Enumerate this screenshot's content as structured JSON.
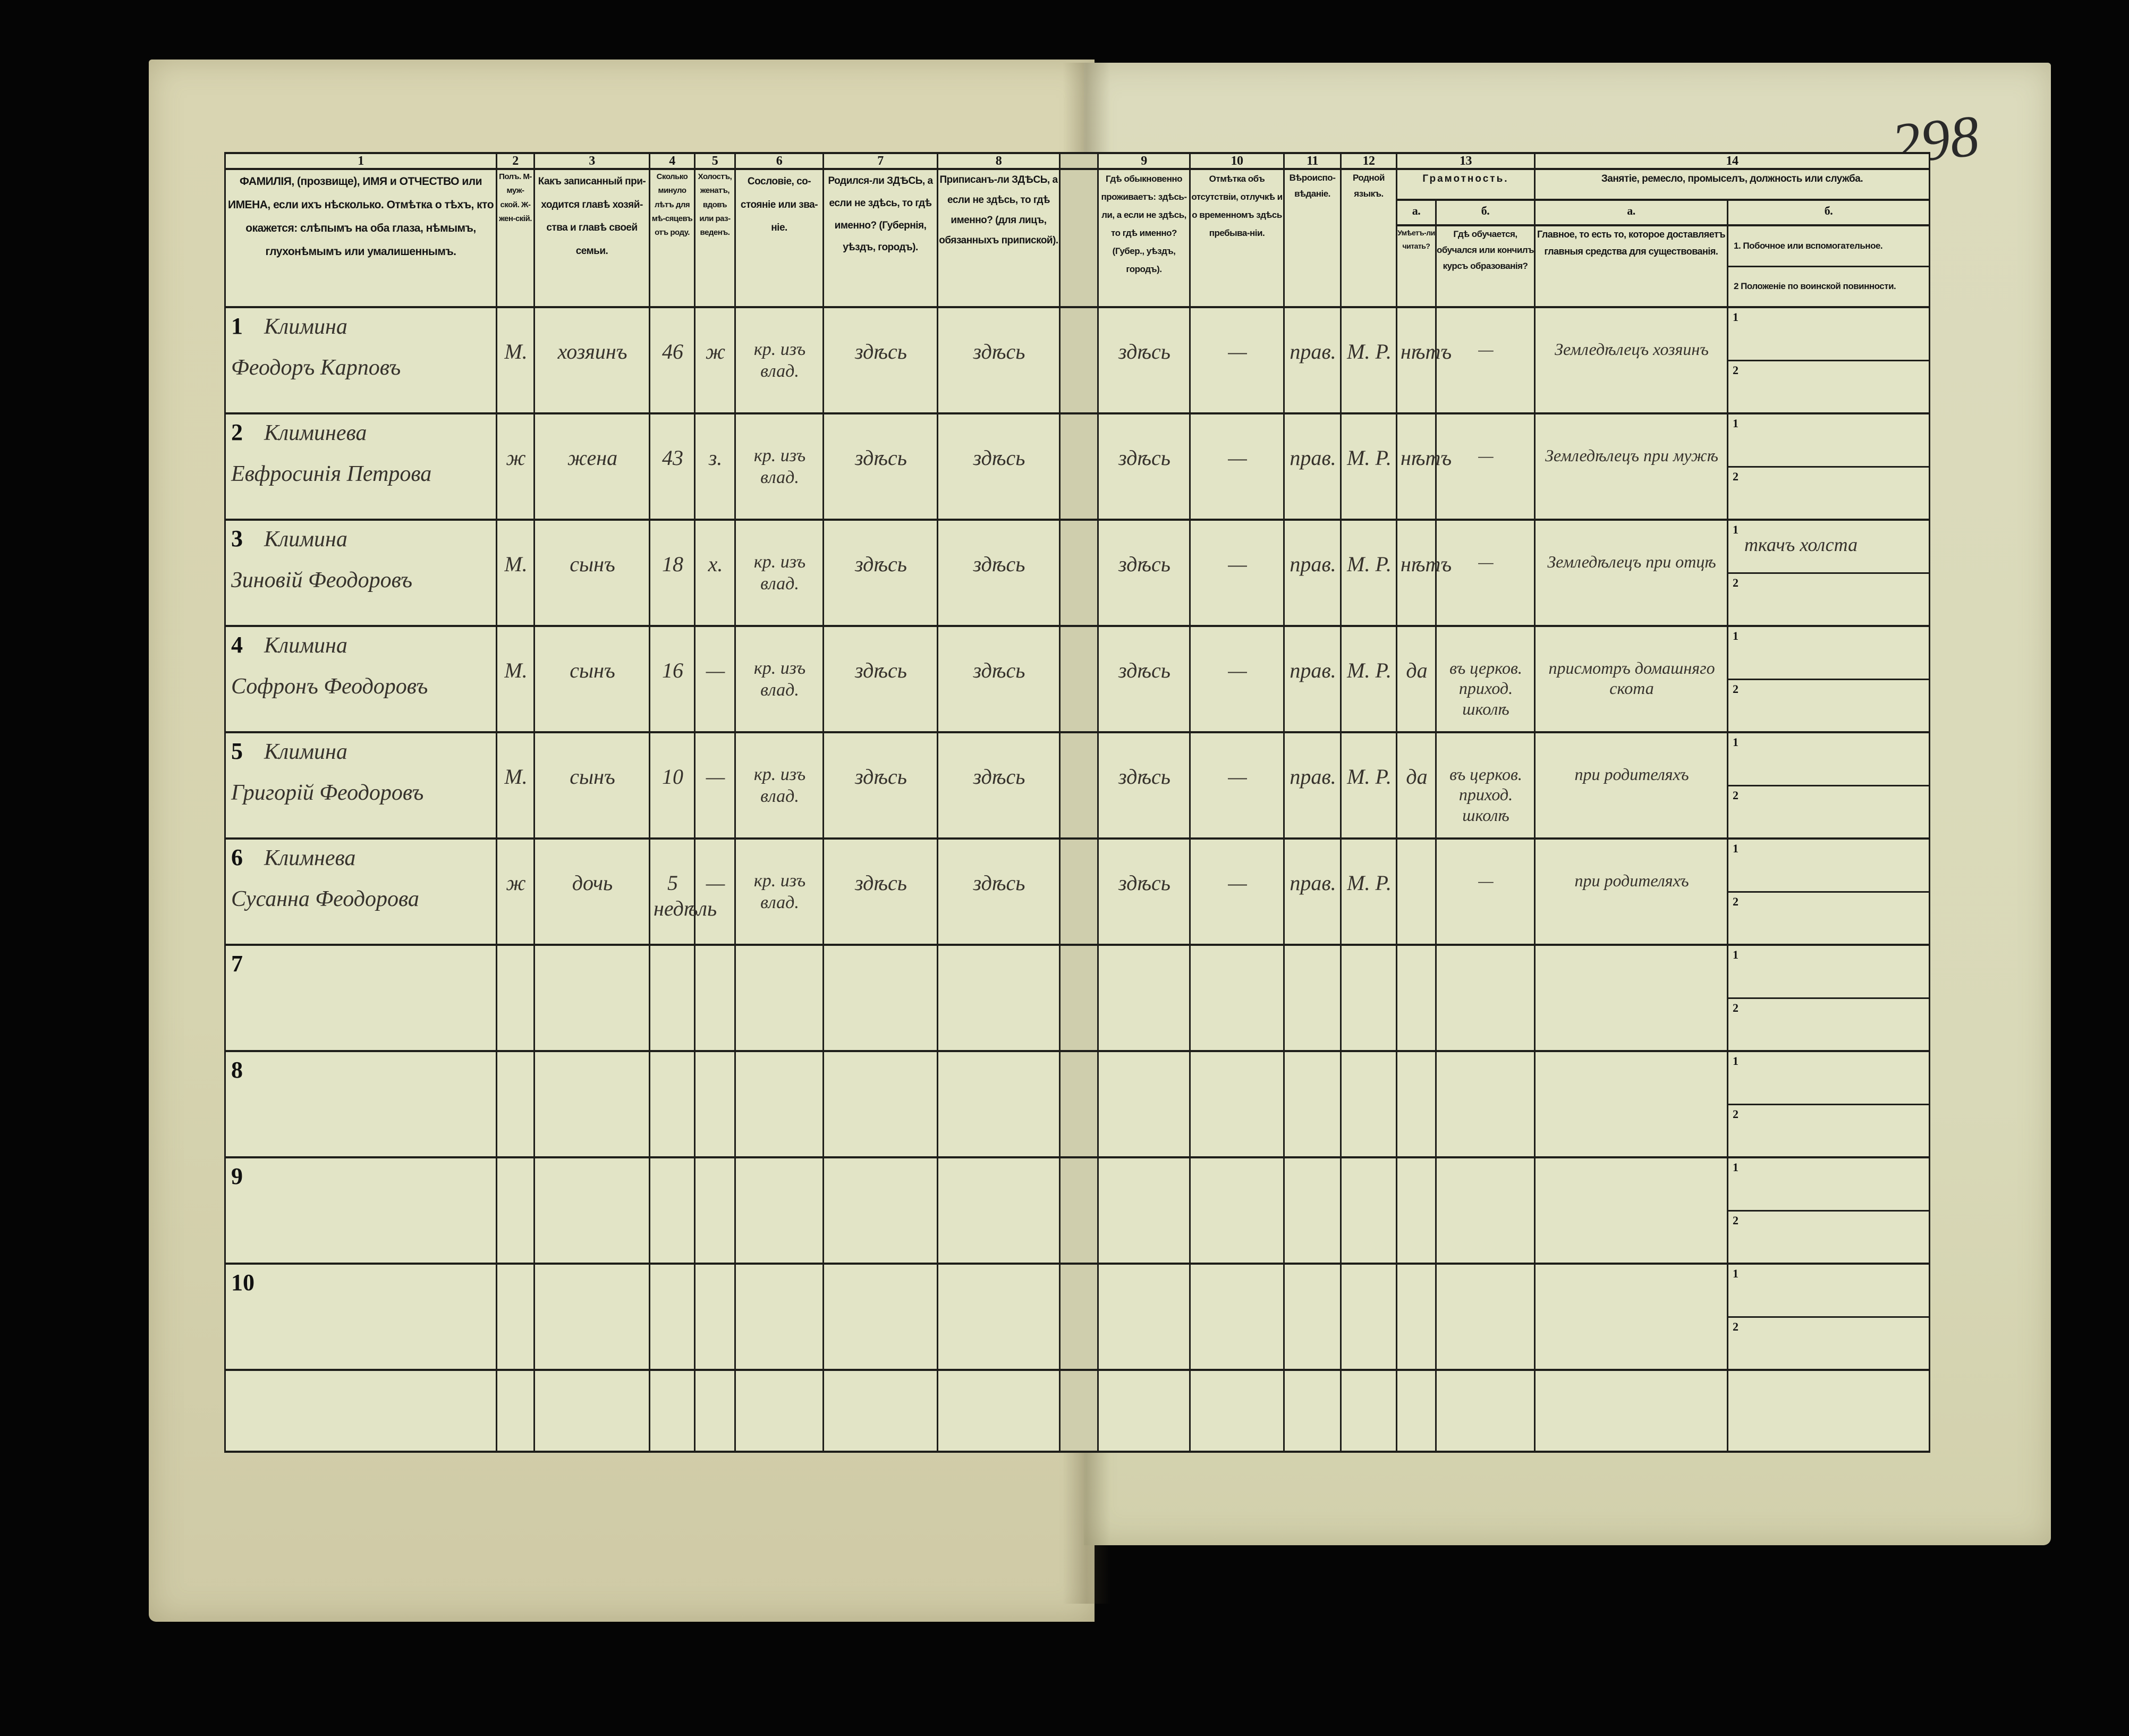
{
  "page_number": "298",
  "header": {
    "column_numbers": [
      "1",
      "2",
      "3",
      "4",
      "5",
      "6",
      "7",
      "8",
      "9",
      "10",
      "11",
      "12",
      "13",
      "14"
    ],
    "col1": "ФАМИЛІЯ, (прозвище), ИМЯ и ОТЧЕСТВО или ИМЕНА, если ихъ нѣсколько. Отмѣтка о тѣхъ, кто окажется: слѣпымъ на оба глаза, нѣмымъ, глухонѣмымъ или умалишеннымъ.",
    "col2": "Полъ. М-муж-ской. Ж-жен-скій.",
    "col3": "Какъ записанный при-ходится главѣ хозяй-ства и главѣ своей семьи.",
    "col4": "Сколько минуло лѣтъ для мѣ-сяцевъ отъ роду.",
    "col5": "Холостъ, женатъ, вдовъ или раз-веденъ.",
    "col6": "Сословіе, со-стояніе или зва-ніе.",
    "col7": "Родился-ли ЗДѢСЬ, а если не здѣсь, то гдѣ именно? (Губернія, уѣздъ, городъ).",
    "col8": "Приписанъ-ли ЗДѢСЬ, а если не здѣсь, то гдѣ именно? (для лицъ, обязанныхъ припиской).",
    "col9": "Гдѣ обыкновенно проживаетъ: здѣсь-ли, а если не здѣсь, то гдѣ именно? (Губер., уѣздъ, городъ).",
    "col10": "Отмѣтка объ отсутствіи, отлучкѣ и о временномъ здѣсь пребыва-ніи.",
    "col11": "Вѣроиспо-вѣданіе.",
    "col12": "Родной языкъ.",
    "col13_title": "Грамотность.",
    "col13a_letter": "а.",
    "col13b_letter": "б.",
    "col13a": "Умѣетъ-ли читать?",
    "col13b": "Гдѣ обучается, обучался или кончилъ курсъ образованія?",
    "col14_title": "Занятіе, ремесло, промыселъ, должность или служба.",
    "col14a_letter": "а.",
    "col14b_letter": "б.",
    "col14a": "Главное, то есть то, которое доставляетъ главныя средства для существованія.",
    "col14b_1": "1. Побочное или вспомогательное.",
    "col14b_2": "2 Положеніе по воинской повинности."
  },
  "sub_labels": [
    "1",
    "2"
  ],
  "rows": [
    {
      "num": "1",
      "surname": "Климина",
      "given": "Феодоръ Карповъ",
      "sex": "М.",
      "relation": "хозяинъ",
      "age": "46",
      "marital": "ж",
      "estate": "кр. изъ влад.",
      "birthplace": "здѣсь",
      "registered": "здѣсь",
      "residence": "здѣсь",
      "absence": "—",
      "religion": "прав.",
      "language": "М. Р.",
      "literate": "нѣтъ",
      "school": "—",
      "occupation_main": "Земледѣлецъ хозяинъ",
      "occupation_secondary": "",
      "military": ""
    },
    {
      "num": "2",
      "surname": "Климинева",
      "given": "Евфросинія Петрова",
      "sex": "ж",
      "relation": "жена",
      "age": "43",
      "marital": "з.",
      "estate": "кр. изъ влад.",
      "birthplace": "здѣсь",
      "registered": "здѣсь",
      "residence": "здѣсь",
      "absence": "—",
      "religion": "прав.",
      "language": "М. Р.",
      "literate": "нѣтъ",
      "school": "—",
      "occupation_main": "Земледѣлецъ при мужѣ",
      "occupation_secondary": "",
      "military": ""
    },
    {
      "num": "3",
      "surname": "Климина",
      "given": "Зиновій Феодоровъ",
      "sex": "М.",
      "relation": "сынъ",
      "age": "18",
      "marital": "х.",
      "estate": "кр. изъ влад.",
      "birthplace": "здѣсь",
      "registered": "здѣсь",
      "residence": "здѣсь",
      "absence": "—",
      "religion": "прав.",
      "language": "М. Р.",
      "literate": "нѣтъ",
      "school": "—",
      "occupation_main": "Земледѣлецъ при отцѣ",
      "occupation_secondary": "ткачъ холста",
      "military": ""
    },
    {
      "num": "4",
      "surname": "Климина",
      "given": "Софронъ Феодоровъ",
      "sex": "М.",
      "relation": "сынъ",
      "age": "16",
      "marital": "—",
      "estate": "кр. изъ влад.",
      "birthplace": "здѣсь",
      "registered": "здѣсь",
      "residence": "здѣсь",
      "absence": "—",
      "religion": "прав.",
      "language": "М. Р.",
      "literate": "да",
      "school": "въ церков. приход. школѣ",
      "occupation_main": "присмотръ домашняго скота",
      "occupation_secondary": "",
      "military": ""
    },
    {
      "num": "5",
      "surname": "Климина",
      "given": "Григорій Феодоровъ",
      "sex": "М.",
      "relation": "сынъ",
      "age": "10",
      "marital": "—",
      "estate": "кр. изъ влад.",
      "birthplace": "здѣсь",
      "registered": "здѣсь",
      "residence": "здѣсь",
      "absence": "—",
      "religion": "прав.",
      "language": "М. Р.",
      "literate": "да",
      "school": "въ церков. приход. школѣ",
      "occupation_main": "при родителяхъ",
      "occupation_secondary": "",
      "military": ""
    },
    {
      "num": "6",
      "surname": "Климнева",
      "given": "Сусанна Феодорова",
      "sex": "ж",
      "relation": "дочь",
      "age": "5 недѣль",
      "marital": "—",
      "estate": "кр. изъ влад.",
      "birthplace": "здѣсь",
      "registered": "здѣсь",
      "residence": "здѣсь",
      "absence": "—",
      "religion": "прав.",
      "language": "М. Р.",
      "literate": "",
      "school": "—",
      "occupation_main": "при родителяхъ",
      "occupation_secondary": "",
      "military": ""
    },
    {
      "num": "7"
    },
    {
      "num": "8"
    },
    {
      "num": "9"
    },
    {
      "num": "10"
    }
  ]
}
